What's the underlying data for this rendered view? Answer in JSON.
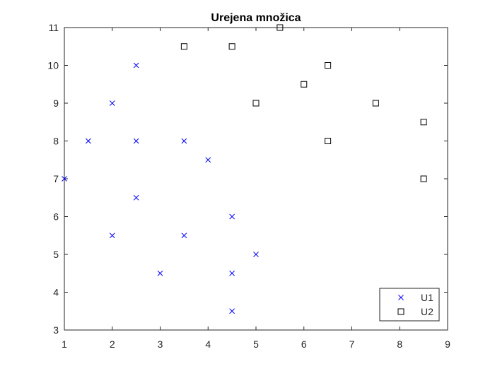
{
  "chart_data": {
    "type": "scatter",
    "title": "Urejena množica",
    "xlabel": "",
    "ylabel": "",
    "xlim": [
      1,
      9
    ],
    "ylim": [
      3,
      11
    ],
    "xticks": [
      1,
      2,
      3,
      4,
      5,
      6,
      7,
      8,
      9
    ],
    "yticks": [
      3,
      4,
      5,
      6,
      7,
      8,
      9,
      10,
      11
    ],
    "grid": false,
    "legend_position": "bottom-right",
    "series": [
      {
        "name": "U1",
        "marker": "x",
        "color": "#0000ff",
        "points": [
          [
            1,
            7
          ],
          [
            1.5,
            8
          ],
          [
            2,
            9
          ],
          [
            2,
            5.5
          ],
          [
            2.5,
            10
          ],
          [
            2.5,
            8
          ],
          [
            2.5,
            6.5
          ],
          [
            3,
            4.5
          ],
          [
            3.5,
            8
          ],
          [
            3.5,
            5.5
          ],
          [
            4,
            7.5
          ],
          [
            4.5,
            6
          ],
          [
            4.5,
            4.5
          ],
          [
            4.5,
            3.5
          ],
          [
            5,
            5
          ]
        ]
      },
      {
        "name": "U2",
        "marker": "square",
        "color": "#000000",
        "points": [
          [
            3.5,
            10.5
          ],
          [
            4.5,
            10.5
          ],
          [
            5,
            9
          ],
          [
            5.5,
            11
          ],
          [
            6,
            9.5
          ],
          [
            6.5,
            10
          ],
          [
            6.5,
            8
          ],
          [
            7.5,
            9
          ],
          [
            8.5,
            8.5
          ],
          [
            8.5,
            7
          ]
        ]
      }
    ]
  }
}
